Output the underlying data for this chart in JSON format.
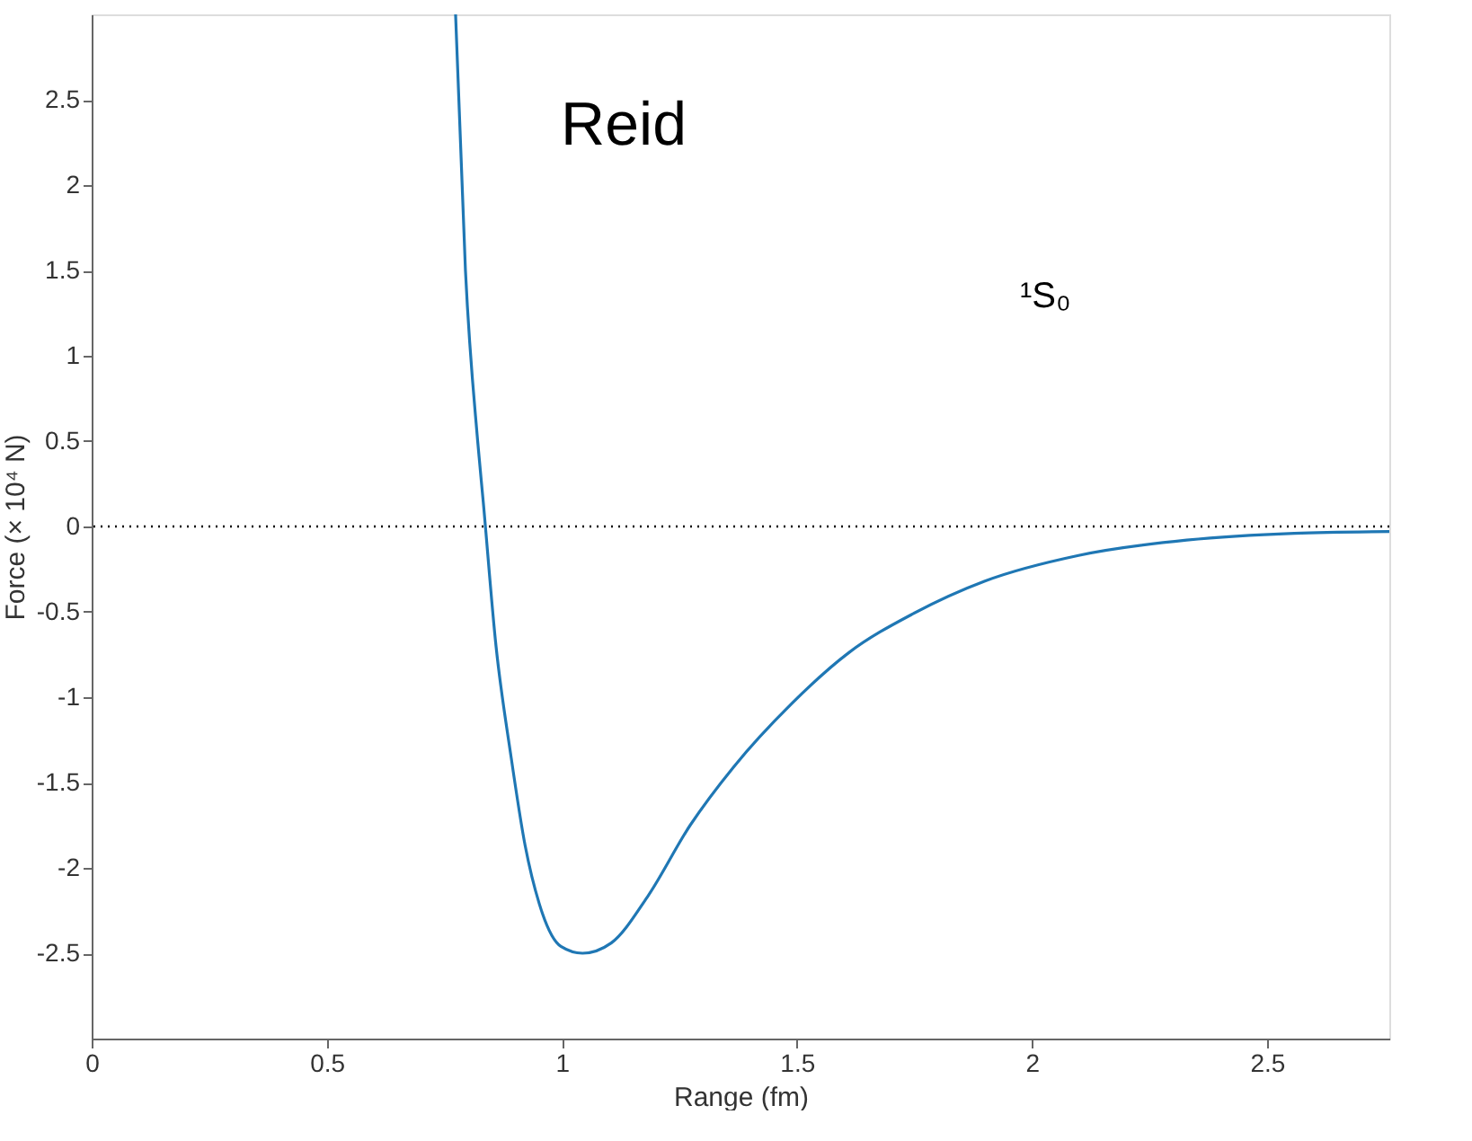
{
  "chart_data": {
    "type": "line",
    "xlabel": "Range (fm)",
    "ylabel": "Force (× 10⁴ N)",
    "annotations": [
      "Reid",
      "¹S₀"
    ],
    "xlim": [
      0,
      2.76
    ],
    "ylim": [
      -3,
      3
    ],
    "xticks": [
      0,
      0.5,
      1,
      1.5,
      2,
      2.5
    ],
    "yticks": [
      -2.5,
      -2,
      -1.5,
      -1,
      -0.5,
      0,
      0.5,
      1,
      1.5,
      2,
      2.5
    ],
    "series": [
      {
        "color": "#1f77b4",
        "x": [
          0.774,
          0.795,
          0.821,
          0.833,
          0.86,
          0.891,
          0.922,
          0.952,
          0.998,
          1.044,
          1.105,
          1.182,
          1.273,
          1.365,
          1.488,
          1.61,
          1.748,
          1.9,
          2.099,
          2.329,
          2.558,
          2.76
        ],
        "values": [
          3,
          1.5,
          0.5,
          0.14,
          -0.7,
          -1.33,
          -1.87,
          -2.21,
          -2.46,
          -2.5,
          -2.44,
          -2.17,
          -1.75,
          -1.41,
          -1.04,
          -0.74,
          -0.51,
          -0.32,
          -0.17,
          -0.08,
          -0.04,
          -0.03
        ]
      }
    ],
    "ref_lines": [
      {
        "axis": "y",
        "value": 0,
        "color": "#000000",
        "line_style": "dotted"
      }
    ],
    "grid": false,
    "marker": "none",
    "line_style": "solid"
  }
}
